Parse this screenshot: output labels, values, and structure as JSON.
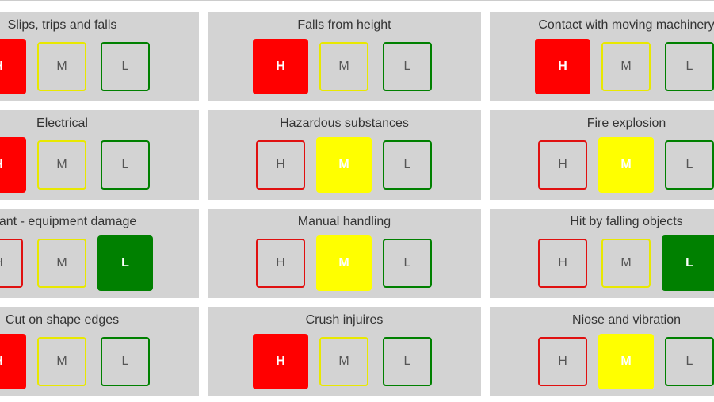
{
  "levels": [
    "H",
    "M",
    "L"
  ],
  "cards": [
    {
      "title": "Slips, trips and falls",
      "selected": 0
    },
    {
      "title": "Falls from height",
      "selected": 0
    },
    {
      "title": "Contact with moving machinery",
      "selected": 0
    },
    {
      "title": "Electrical",
      "selected": 0
    },
    {
      "title": "Hazardous substances",
      "selected": 1
    },
    {
      "title": "Fire explosion",
      "selected": 1
    },
    {
      "title": "Plant - equipment damage",
      "selected": 2
    },
    {
      "title": "Manual handling",
      "selected": 1
    },
    {
      "title": "Hit by falling objects",
      "selected": 2
    },
    {
      "title": "Cut on shape edges",
      "selected": 0
    },
    {
      "title": "Crush injuires",
      "selected": 0
    },
    {
      "title": "Niose and vibration",
      "selected": 1
    }
  ]
}
